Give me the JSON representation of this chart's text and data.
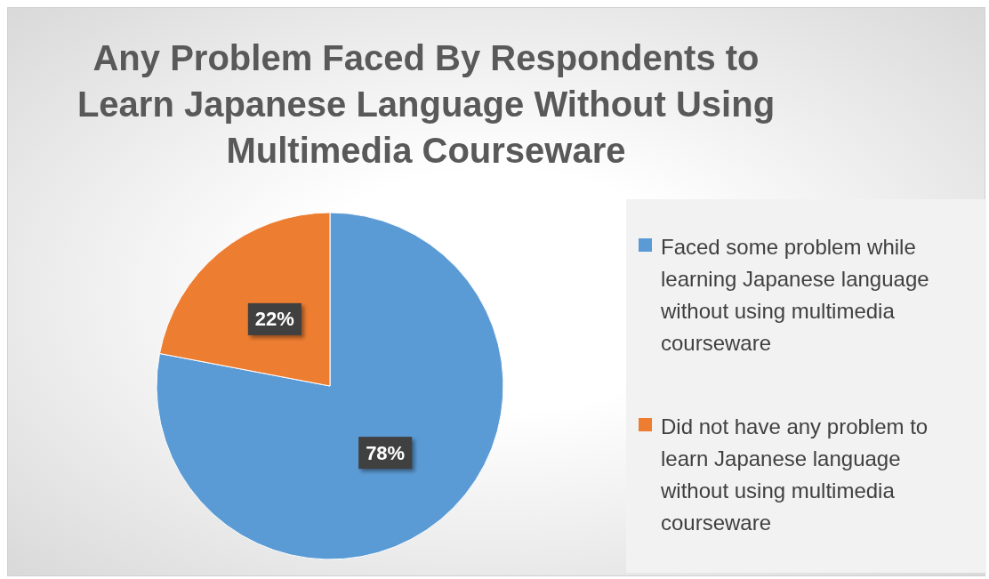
{
  "chart_data": {
    "type": "pie",
    "title": "Any Problem Faced By Respondents to Learn Japanese Language Without Using Multimedia Courseware",
    "categories": [
      "Faced some problem while learning Japanese language without using multimedia courseware",
      "Did not have any problem to learn Japanese language without using multimedia courseware"
    ],
    "values": [
      78,
      22
    ],
    "colors": [
      "#5b9bd5",
      "#ed7d31"
    ],
    "value_labels": [
      "78%",
      "22%"
    ],
    "legend": "right"
  }
}
